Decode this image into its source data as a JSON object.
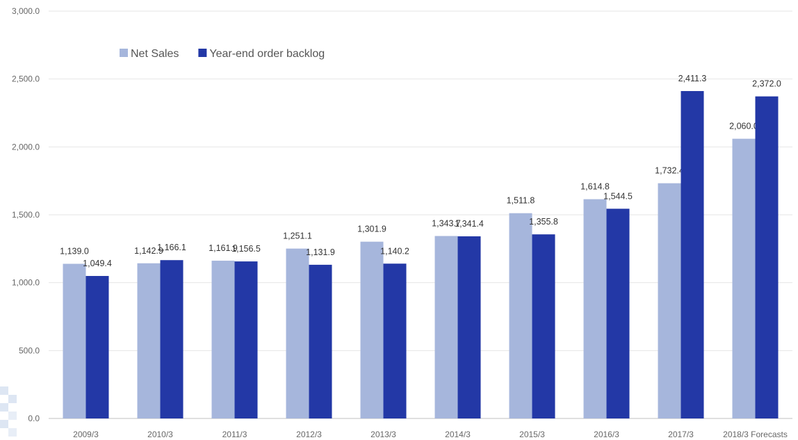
{
  "chart_data": {
    "type": "bar",
    "categories": [
      "2009/3",
      "2010/3",
      "2011/3",
      "2012/3",
      "2013/3",
      "2014/3",
      "2015/3",
      "2016/3",
      "2017/3",
      "2018/3 Forecasts"
    ],
    "series": [
      {
        "name": "Net Sales",
        "color": "#a6b6dc",
        "values": [
          1139.0,
          1142.9,
          1161.9,
          1251.1,
          1301.9,
          1343.7,
          1511.8,
          1614.8,
          1732.4,
          2060.0
        ],
        "labels": [
          "1,139.0",
          "1,142.9",
          "1,161.9",
          "1,251.1",
          "1,301.9",
          "1,343.7",
          "1,511.8",
          "1,614.8",
          "1,732.4",
          "2,060.0"
        ]
      },
      {
        "name": "Year-end order backlog",
        "color": "#2338a6",
        "values": [
          1049.4,
          1166.1,
          1156.5,
          1131.9,
          1140.2,
          1341.4,
          1355.8,
          1544.5,
          2411.3,
          2372.0
        ],
        "labels": [
          "1,049.4",
          "1,166.1",
          "1,156.5",
          "1,131.9",
          "1,140.2",
          "1,341.4",
          "1,355.8",
          "1,544.5",
          "2,411.3",
          "2,372.0"
        ]
      }
    ],
    "yticks": [
      "0.0",
      "500.0",
      "1,000.0",
      "1,500.0",
      "2,000.0",
      "2,500.0",
      "3,000.0"
    ],
    "ylim": [
      0,
      3000
    ],
    "grid": true,
    "legend_position": "top-left",
    "title": "",
    "xlabel": "",
    "ylabel": ""
  }
}
